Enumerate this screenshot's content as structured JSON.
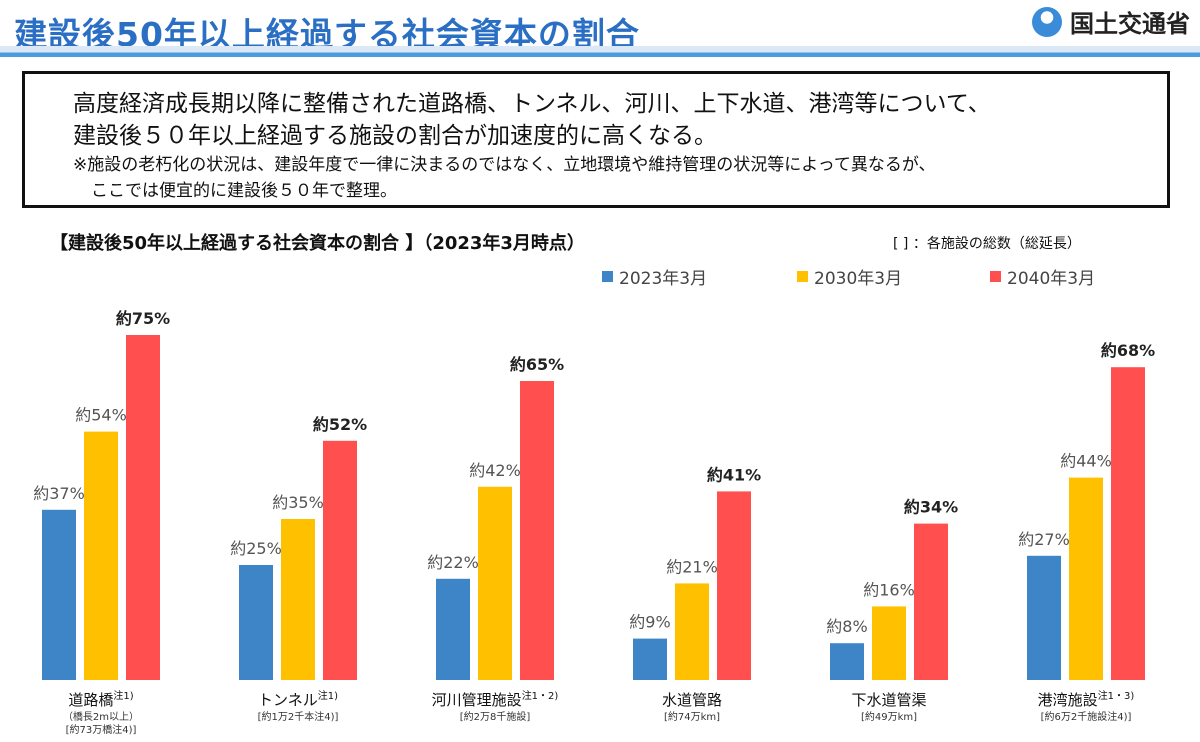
{
  "header": {
    "title": "建設後50年以上経過する社会資本の割合",
    "logo_text": "国土交通省"
  },
  "note": {
    "line1": "高度経済成長期以降に整備された道路橋、トンネル、河川、上下水道、港湾等について、",
    "line2": "建設後５０年以上経過する施設の割合が加速度的に高くなる。",
    "line3": "※施設の老朽化の状況は、建設年度で一律に決まるのではなく、立地環境や維持管理の状況等によって異なるが、",
    "line4": "ここでは便宜的に建設後５０年で整理。"
  },
  "chart_header": {
    "title": "【建設後50年以上経過する社会資本の割合 】（2023年3月時点）",
    "note": "[ ] ：各施設の総数（総延長）"
  },
  "chart_data": {
    "type": "bar",
    "title": "【建設後50年以上経過する社会資本の割合 】（2023年3月時点）",
    "categories": [
      "道路橋",
      "トンネル",
      "河川管理施設",
      "水道管路",
      "下水道管渠",
      "港湾施設"
    ],
    "category_notes": [
      "注1)",
      "注1)",
      "注1・2)",
      "",
      "",
      "注1・3)"
    ],
    "category_sublabels": [
      [
        "（橋長2m以上）",
        "[約73万橋注4)]"
      ],
      [
        "[約1万2千本注4)]"
      ],
      [
        "[約2万8千施設]"
      ],
      [
        "[約74万km]"
      ],
      [
        "[約49万km]"
      ],
      [
        "[約6万2千施設注4)]"
      ]
    ],
    "series": [
      {
        "name": "2023年3月",
        "color": "#3d85c6",
        "values": [
          37,
          25,
          22,
          9,
          8,
          27
        ],
        "labels": [
          "約37%",
          "約25%",
          "約22%",
          "約9%",
          "約8%",
          "約27%"
        ]
      },
      {
        "name": "2030年3月",
        "color": "#ffc000",
        "values": [
          54,
          35,
          42,
          21,
          16,
          44
        ],
        "labels": [
          "約54%",
          "約35%",
          "約42%",
          "約21%",
          "約16%",
          "約44%"
        ]
      },
      {
        "name": "2040年3月",
        "color": "#ff4f4f",
        "values": [
          75,
          52,
          65,
          41,
          34,
          68
        ],
        "labels": [
          "約75%",
          "約52%",
          "約65%",
          "約41%",
          "約34%",
          "約68%"
        ]
      }
    ],
    "ylim": [
      0,
      100
    ],
    "grid": false,
    "legend_position": "top-right"
  }
}
